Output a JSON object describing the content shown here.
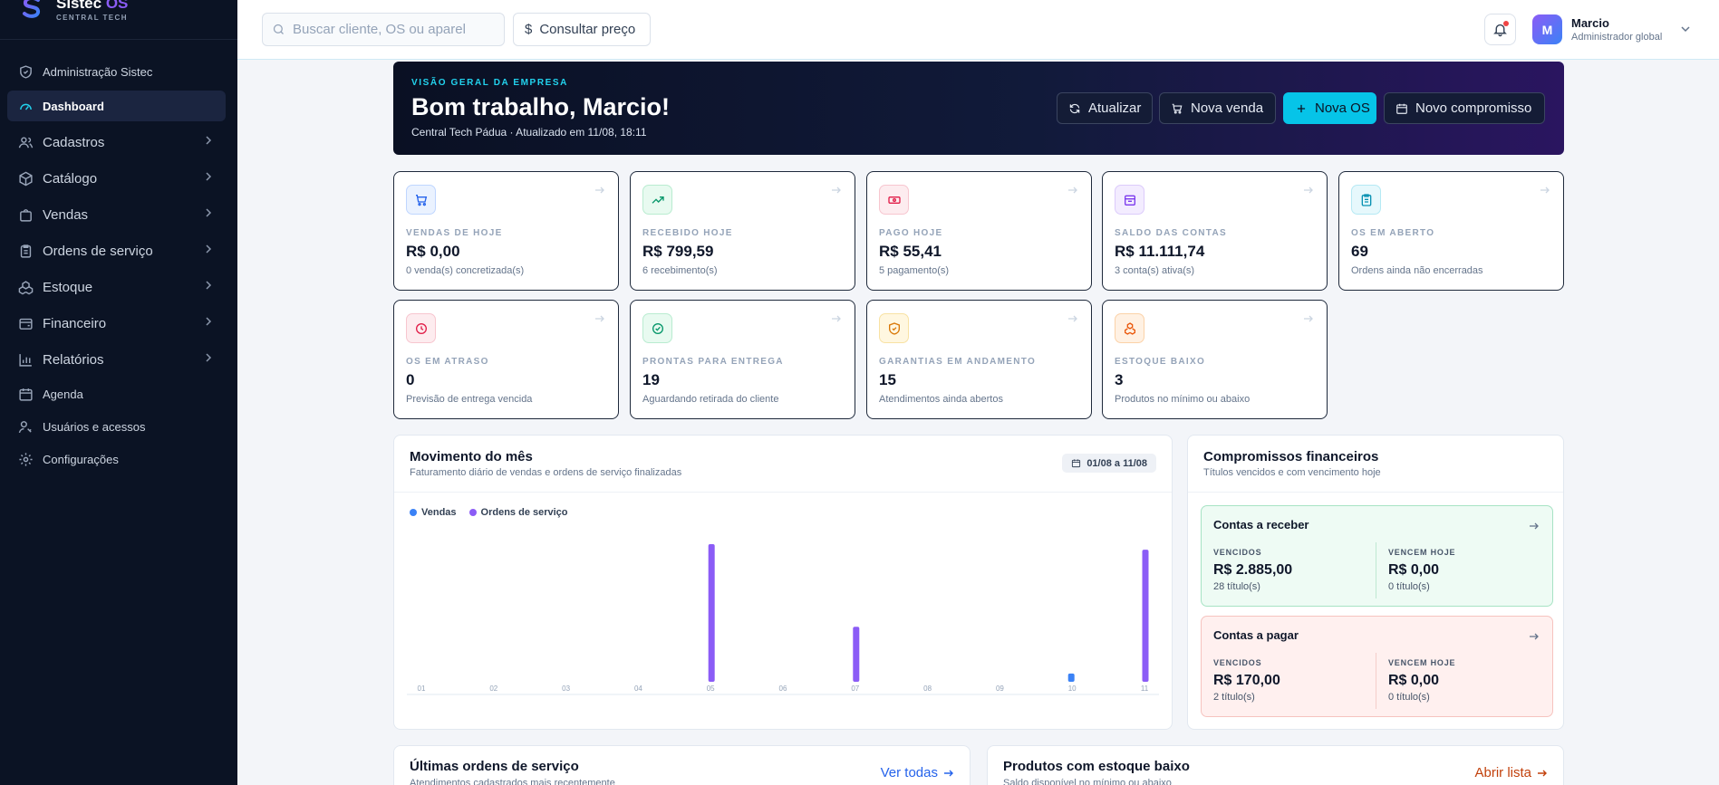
{
  "brand": {
    "name": "Sistec",
    "name_accent": "OS",
    "subtitle": "CENTRAL TECH"
  },
  "sidebar": {
    "items": [
      {
        "label": "Administração Sistec",
        "icon": "shield-icon"
      },
      {
        "label": "Dashboard",
        "icon": "gauge-icon",
        "active": true
      },
      {
        "label": "Cadastros",
        "icon": "users-icon",
        "chevron": true
      },
      {
        "label": "Catálogo",
        "icon": "box-icon",
        "chevron": true
      },
      {
        "label": "Vendas",
        "icon": "bag-icon",
        "chevron": true
      },
      {
        "label": "Ordens de serviço",
        "icon": "clipboard-icon",
        "chevron": true
      },
      {
        "label": "Estoque",
        "icon": "boxes-icon",
        "chevron": true
      },
      {
        "label": "Financeiro",
        "icon": "wallet-icon",
        "chevron": true
      },
      {
        "label": "Relatórios",
        "icon": "bar-chart-icon",
        "chevron": true
      },
      {
        "label": "Agenda",
        "icon": "calendar-icon"
      },
      {
        "label": "Usuários e acessos",
        "icon": "user-key-icon"
      },
      {
        "label": "Configurações",
        "icon": "gear-icon"
      }
    ]
  },
  "topbar": {
    "search_placeholder": "Buscar cliente, OS ou aparel",
    "price_label": "Consultar preço",
    "user_name": "Marcio",
    "user_role": "Administrador global",
    "avatar_initial": "M"
  },
  "hero": {
    "kicker": "VISÃO GERAL DA EMPRESA",
    "title": "Bom trabalho, Marcio!",
    "subtitle": "Central Tech Pádua · Atualizado em 11/08, 18:11",
    "buttons": {
      "refresh": "Atualizar",
      "new_sale": "Nova venda",
      "new_os": "Nova OS",
      "new_commitment": "Novo compromisso"
    }
  },
  "kpis": [
    {
      "label": "VENDAS DE HOJE",
      "value": "R$ 0,00",
      "desc": "0 venda(s) concretizada(s)"
    },
    {
      "label": "RECEBIDO HOJE",
      "value": "R$ 799,59",
      "desc": "6 recebimento(s)"
    },
    {
      "label": "PAGO HOJE",
      "value": "R$ 55,41",
      "desc": "5 pagamento(s)"
    },
    {
      "label": "SALDO DAS CONTAS",
      "value": "R$ 11.111,74",
      "desc": "3 conta(s) ativa(s)"
    },
    {
      "label": "OS EM ABERTO",
      "value": "69",
      "desc": "Ordens ainda não encerradas"
    },
    {
      "label": "OS EM ATRASO",
      "value": "0",
      "desc": "Previsão de entrega vencida"
    },
    {
      "label": "PRONTAS PARA ENTREGA",
      "value": "19",
      "desc": "Aguardando retirada do cliente"
    },
    {
      "label": "GARANTIAS EM ANDAMENTO",
      "value": "15",
      "desc": "Atendimentos ainda abertos"
    },
    {
      "label": "ESTOQUE BAIXO",
      "value": "3",
      "desc": "Produtos no mínimo ou abaixo"
    }
  ],
  "movement": {
    "title": "Movimento do mês",
    "subtitle": "Faturamento diário de vendas e ordens de serviço finalizadas",
    "date_range": "01/08 a 11/08"
  },
  "chart_data": {
    "type": "bar",
    "categories": [
      "01",
      "02",
      "03",
      "04",
      "05",
      "06",
      "07",
      "08",
      "09",
      "10",
      "11"
    ],
    "series": [
      {
        "name": "Vendas",
        "color": "#3b82f6",
        "values": [
          0,
          0,
          0,
          0,
          0,
          0,
          0,
          0,
          0,
          6,
          0
        ]
      },
      {
        "name": "Ordens de serviço",
        "color": "#8b5cf6",
        "values": [
          0,
          0,
          0,
          0,
          100,
          0,
          40,
          0,
          0,
          0,
          96
        ]
      }
    ],
    "legend": "top-left",
    "grid": false
  },
  "financial": {
    "title": "Compromissos financeiros",
    "subtitle": "Títulos vencidos e com vencimento hoje",
    "receivable": {
      "title": "Contas a receber",
      "overdue_label": "VENCIDOS",
      "overdue_value": "R$ 2.885,00",
      "overdue_count": "28 título(s)",
      "today_label": "VENCEM HOJE",
      "today_value": "R$ 0,00",
      "today_count": "0 título(s)"
    },
    "payable": {
      "title": "Contas a pagar",
      "overdue_label": "VENCIDOS",
      "overdue_value": "R$ 170,00",
      "overdue_count": "2 título(s)",
      "today_label": "VENCEM HOJE",
      "today_value": "R$ 0,00",
      "today_count": "0 título(s)"
    }
  },
  "latest_os": {
    "title": "Últimas ordens de serviço",
    "subtitle": "Atendimentos cadastrados mais recentemente",
    "link": "Ver todas"
  },
  "low_stock": {
    "title": "Produtos com estoque baixo",
    "subtitle": "Saldo disponível no mínimo ou abaixo",
    "link": "Abrir lista"
  },
  "colors": {
    "accent": "#06c4e8",
    "sidebar_bg": "#0b1324",
    "series_sales": "#3b82f6",
    "series_os": "#8b5cf6"
  }
}
